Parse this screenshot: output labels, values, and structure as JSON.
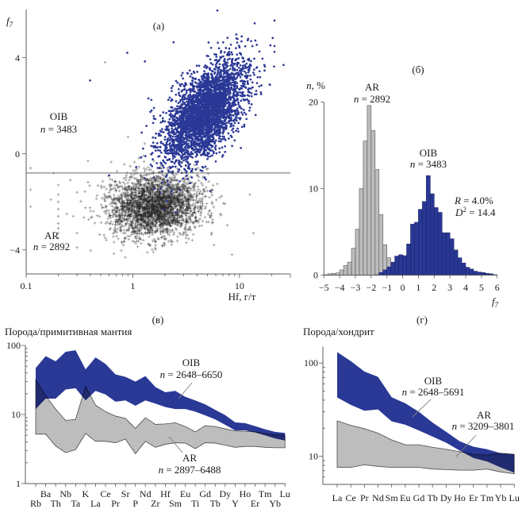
{
  "colors": {
    "oib": "#2a3896",
    "ar_fill": "#c4c4c4",
    "ar_marker": "#333333"
  },
  "chart_data": [
    {
      "type": "scatter",
      "panel_label": "(а)",
      "xlabel": "Hf, г/т",
      "ylabel": {
        "symbol": "f",
        "subscript": "7"
      },
      "xscale": "log",
      "xlim": [
        0.1,
        30
      ],
      "ylim": [
        -5,
        6
      ],
      "x_ticks": [
        0.1,
        1,
        10
      ],
      "x_tick_labels": [
        "0.1",
        "1",
        "10"
      ],
      "y_ticks": [
        -4,
        0,
        4
      ],
      "y_tick_labels": [
        "−4",
        "0",
        "4"
      ],
      "reference_line": {
        "y": -0.8
      },
      "series": [
        {
          "name": "AR",
          "count_prefix": "n",
          "count_text": " = 2892",
          "n": 2892,
          "marker": "cross",
          "color": "#333333",
          "distribution": {
            "log10_x_mean": 0.2,
            "log10_x_sd": 0.22,
            "y_mean": -2.15,
            "y_sd": 0.65,
            "y_slope_per_log10_x": 0.3
          },
          "outliers": [
            [
              0.11,
              -0.6
            ],
            [
              0.11,
              -1.5
            ],
            [
              0.11,
              -2.2
            ],
            [
              0.17,
              -1.9
            ],
            [
              0.18,
              -0.8
            ],
            [
              0.2,
              -1.3
            ],
            [
              0.2,
              -1.7
            ],
            [
              0.2,
              -2.0
            ],
            [
              0.2,
              -2.3
            ],
            [
              0.2,
              -2.6
            ],
            [
              0.2,
              -2.9
            ],
            [
              0.2,
              -3.1
            ],
            [
              0.2,
              -3.3
            ],
            [
              0.2,
              -3.5
            ],
            [
              0.3,
              -1.6
            ],
            [
              0.3,
              -3.3
            ],
            [
              0.3,
              -3.9
            ],
            [
              0.38,
              -0.3
            ],
            [
              0.9,
              0.7
            ],
            [
              0.55,
              3.8
            ],
            [
              12.5,
              -1.7
            ],
            [
              13.5,
              -3.3
            ],
            [
              8.5,
              -4.2
            ],
            [
              0.24,
              -2.5
            ],
            [
              0.26,
              -1.1
            ]
          ]
        },
        {
          "name": "OIB",
          "count_prefix": "n",
          "count_text": " = 3483",
          "n": 3483,
          "marker": "dot",
          "color": "#2a3896",
          "distribution": {
            "log10_x_mean": 0.68,
            "log10_x_sd": 0.19,
            "y_mean": 1.75,
            "y_sd": 0.85,
            "y_slope_per_log10_x": 3.2
          },
          "outliers": [
            [
              0.398,
              3.05
            ],
            [
              0.887,
              4.2
            ],
            [
              1.3,
              3.84
            ],
            [
              2.41,
              4.64
            ],
            [
              6.2,
              5.96
            ],
            [
              21.3,
              5.54
            ],
            [
              21.3,
              4.48
            ],
            [
              21.3,
              4.24
            ],
            [
              19.2,
              2.88
            ],
            [
              14.6,
              3.6
            ],
            [
              0.6,
              -0.9
            ],
            [
              1.5,
              1.8
            ],
            [
              1.4,
              2.3
            ]
          ]
        }
      ]
    },
    {
      "type": "histogram",
      "panel_label": "(б)",
      "xlabel": {
        "symbol": "f",
        "subscript": "7"
      },
      "ylabel": {
        "symbol": "n",
        "text": ", %"
      },
      "xlim": [
        -5,
        6
      ],
      "ylim": [
        0,
        20
      ],
      "x_ticks": [
        -5,
        -4,
        -3,
        -2,
        -1,
        0,
        1,
        2,
        3,
        4,
        5,
        6
      ],
      "x_tick_labels": [
        "−5",
        "−4",
        "−3",
        "−2",
        "−1",
        "0",
        "1",
        "2",
        "3",
        "4",
        "5",
        "6"
      ],
      "y_ticks": [
        0,
        10,
        20
      ],
      "y_tick_labels": [
        "0",
        "10",
        "20"
      ],
      "bin_width": 0.25,
      "series": [
        {
          "name": "AR",
          "count_prefix": "n",
          "count_text": " = 2892",
          "pattern": "hatched",
          "color": "#c4c4c4",
          "bin_start": -5,
          "values": [
            0.05,
            0.15,
            0.2,
            0.25,
            0.6,
            1.1,
            1.5,
            3.1,
            5.3,
            10.0,
            15.5,
            19.6,
            16.7,
            12.2,
            7.0,
            3.5,
            2.0,
            1.2,
            0.6,
            0.4,
            0.3,
            0.2,
            0.15,
            0.1,
            0.05
          ]
        },
        {
          "name": "OIB",
          "count_prefix": "n",
          "count_text": " = 3483",
          "pattern": "solid",
          "color": "#2a3896",
          "bin_start": -1.75,
          "values": [
            0.05,
            0.3,
            0.6,
            0.95,
            1.5,
            2.2,
            2.35,
            2.25,
            3.6,
            5.9,
            6.1,
            7.6,
            8.5,
            11.5,
            9.4,
            7.8,
            7.25,
            4.9,
            4.9,
            4.2,
            2.9,
            2.0,
            1.4,
            0.9,
            0.7,
            0.45,
            0.35,
            0.3,
            0.2,
            0.15,
            0.05
          ]
        }
      ],
      "annotations": {
        "r": {
          "symbol": "R",
          "text": " = 4.0%"
        },
        "d2": {
          "symbol": "D",
          "superscript": "2",
          "text": " = 14.4"
        }
      }
    },
    {
      "type": "area",
      "subtype": "range-band",
      "panel_label": "(в)",
      "ylabel": "Порода/примитивная мантия",
      "yscale": "log",
      "ylim": [
        1,
        100
      ],
      "y_ticks": [
        1,
        10,
        100
      ],
      "y_tick_labels": [
        "1",
        "10",
        "100"
      ],
      "categories": [
        "Rb",
        "Ba",
        "Th",
        "Nb",
        "Ta",
        "K",
        "La",
        "Ce",
        "Pr",
        "Sr",
        "P",
        "Nd",
        "Zr",
        "Hf",
        "Sm",
        "Eu",
        "Ti",
        "Gd",
        "Tb",
        "Dy",
        "Y",
        "Ho",
        "Er",
        "Tm",
        "Yb",
        "Lu"
      ],
      "series": [
        {
          "name": "OIB",
          "count_prefix": "n",
          "count_text": " = 2648–6650",
          "color": "#2a3896",
          "upper": [
            47,
            70,
            59,
            81,
            85,
            45,
            67,
            54,
            38,
            35,
            30,
            36,
            25,
            21,
            22,
            18,
            16,
            14,
            11.7,
            9.8,
            7.7,
            7.5,
            6.8,
            6.1,
            5.6,
            5.4
          ],
          "lower": [
            12,
            17,
            17,
            23,
            24,
            16,
            22,
            19.5,
            15.3,
            16,
            13.4,
            16,
            14.4,
            12.8,
            12,
            12,
            11,
            9.7,
            8.5,
            7.1,
            5.9,
            5.9,
            5.5,
            5.0,
            4.5,
            4.2
          ]
        },
        {
          "name": "AR",
          "count_prefix": "n",
          "count_text": " = 2897–6488",
          "color": "#c4c4c4",
          "upper": [
            32,
            18.7,
            12,
            8.2,
            8.5,
            25.5,
            13.7,
            11,
            9.5,
            8.8,
            6.3,
            9.0,
            7.2,
            7.3,
            7.6,
            6.7,
            5.6,
            6.9,
            6.7,
            6.2,
            5.8,
            5.7,
            5.6,
            5.3,
            5.1,
            5.0
          ],
          "lower": [
            5.2,
            5.2,
            3.5,
            2.8,
            3.1,
            5.3,
            4.1,
            4.1,
            3.9,
            4.4,
            2.7,
            4.1,
            3.35,
            3.7,
            3.9,
            3.85,
            3.2,
            3.9,
            3.85,
            3.6,
            3.35,
            3.45,
            3.45,
            3.35,
            3.3,
            3.3
          ]
        }
      ]
    },
    {
      "type": "area",
      "subtype": "range-band",
      "panel_label": "(г)",
      "ylabel": "Порода/хондрит",
      "yscale": "log",
      "ylim": [
        5,
        150
      ],
      "y_ticks": [
        10,
        100
      ],
      "y_tick_labels": [
        "10",
        "100"
      ],
      "categories": [
        "La",
        "Ce",
        "Pr",
        "Nd",
        "Sm",
        "Eu",
        "Gd",
        "Tb",
        "Dy",
        "Ho",
        "Er",
        "Tm",
        "Yb",
        "Lu"
      ],
      "series": [
        {
          "name": "OIB",
          "count_prefix": "n",
          "count_text": " = 2648–5691",
          "color": "#2a3896",
          "upper": [
            131,
            105,
            81,
            71,
            43,
            37,
            30,
            23,
            18.3,
            14.5,
            12.7,
            11.9,
            10.8,
            10.5
          ],
          "lower": [
            42.8,
            35.6,
            30.8,
            31.8,
            23.7,
            21.8,
            18.9,
            16.3,
            14,
            11.5,
            9.6,
            8.8,
            7.6,
            6.7
          ]
        },
        {
          "name": "AR",
          "count_prefix": "n",
          "count_text": " = 3209–3801",
          "color": "#c4c4c4",
          "upper": [
            24,
            21.5,
            19.8,
            17.7,
            15,
            13.3,
            13.3,
            12.5,
            11.9,
            11.2,
            10.5,
            10.3,
            10.8,
            10.5
          ],
          "lower": [
            7.6,
            7.6,
            8.1,
            7.8,
            7.6,
            7.6,
            7.6,
            7.3,
            7.2,
            7.1,
            7.1,
            7.3,
            6.8,
            6.5
          ]
        }
      ]
    }
  ]
}
